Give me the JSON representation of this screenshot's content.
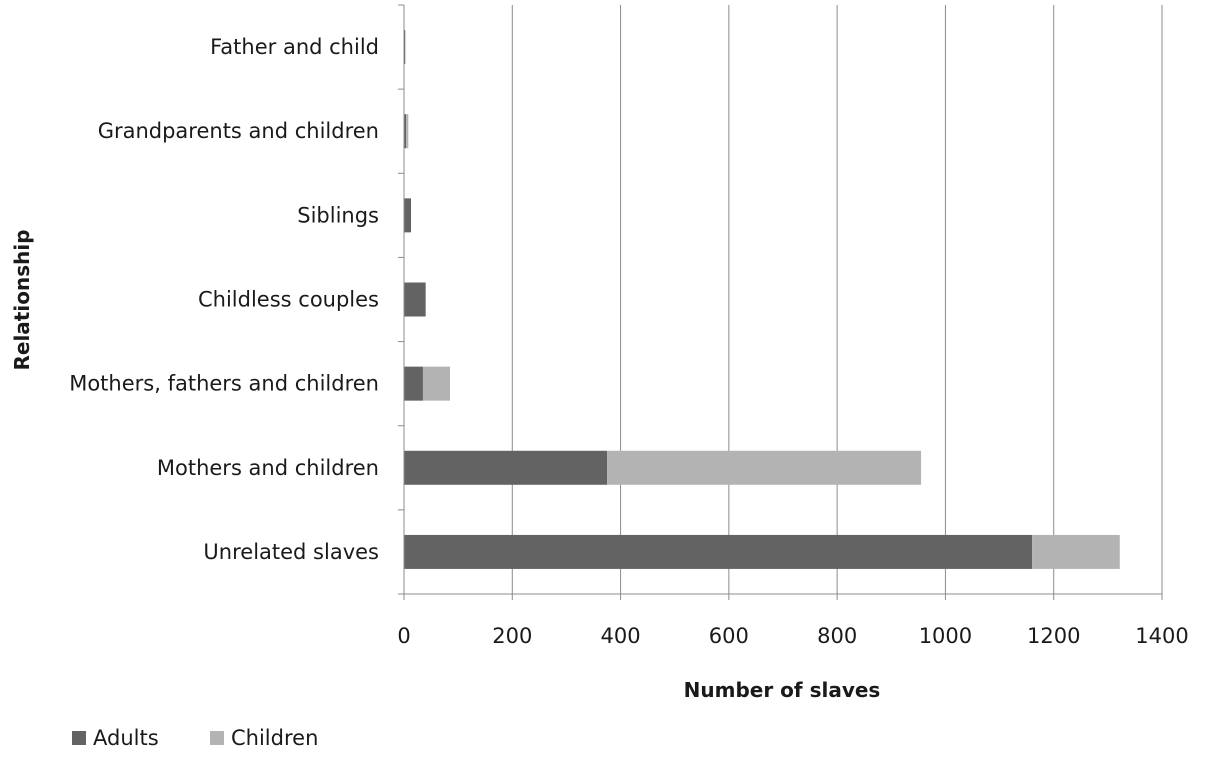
{
  "chart_data": {
    "type": "bar",
    "orientation": "horizontal",
    "stacked": true,
    "categories": [
      "Father and child",
      "Grandparents and children",
      "Siblings",
      "Childless couples",
      "Mothers, fathers and children",
      "Mothers and children",
      "Unrelated slaves"
    ],
    "series": [
      {
        "name": "Adults",
        "color": "#636363",
        "values": [
          2,
          4,
          13,
          40,
          35,
          375,
          1160
        ]
      },
      {
        "name": "Children",
        "color": "#b3b3b3",
        "values": [
          1,
          4,
          0,
          0,
          50,
          580,
          162
        ]
      }
    ],
    "xlabel": "Number of slaves",
    "ylabel": "Relationship",
    "xlim": [
      0,
      1400
    ],
    "xticks": [
      "0",
      "200",
      "400",
      "600",
      "800",
      "1000",
      "1200",
      "1400"
    ],
    "grid": "vertical",
    "legend": "bottom-left"
  }
}
